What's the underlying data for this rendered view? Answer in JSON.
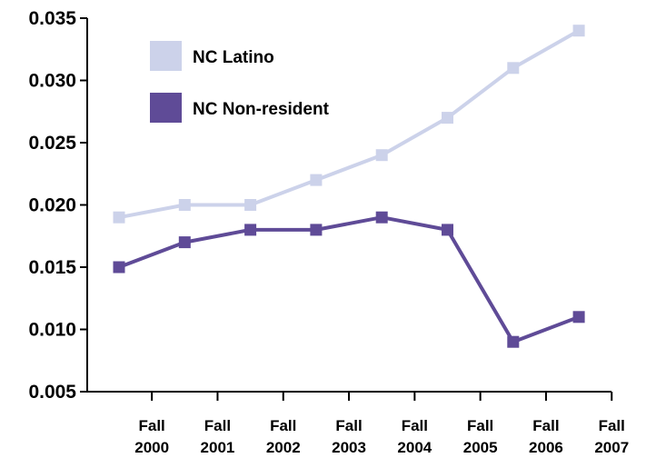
{
  "chart_data": {
    "type": "line",
    "title": "",
    "xlabel": "",
    "ylabel": "",
    "categories": [
      "Fall 2000",
      "Fall 2001",
      "Fall 2002",
      "Fall 2003",
      "Fall 2004",
      "Fall 2005",
      "Fall 2006",
      "Fall 2007"
    ],
    "x_tick_labels": [
      [
        "Fall",
        "2000"
      ],
      [
        "Fall",
        "2001"
      ],
      [
        "Fall",
        "2002"
      ],
      [
        "Fall",
        "2003"
      ],
      [
        "Fall",
        "2004"
      ],
      [
        "Fall",
        "2005"
      ],
      [
        "Fall",
        "2006"
      ],
      [
        "Fall",
        "2007"
      ]
    ],
    "y_ticks": [
      "0.005",
      "0.010",
      "0.015",
      "0.020",
      "0.025",
      "0.030",
      "0.035"
    ],
    "ylim": [
      0.005,
      0.035
    ],
    "grid": false,
    "legend_position": "top-left",
    "series": [
      {
        "name": "NC Latino",
        "color": "#ccd2ea",
        "values": [
          0.019,
          0.02,
          0.02,
          0.022,
          0.024,
          0.027,
          0.031,
          0.034
        ]
      },
      {
        "name": "NC Non-resident",
        "color": "#5f4b97",
        "values": [
          0.015,
          0.017,
          0.018,
          0.018,
          0.019,
          0.018,
          0.009,
          0.011
        ]
      }
    ]
  }
}
